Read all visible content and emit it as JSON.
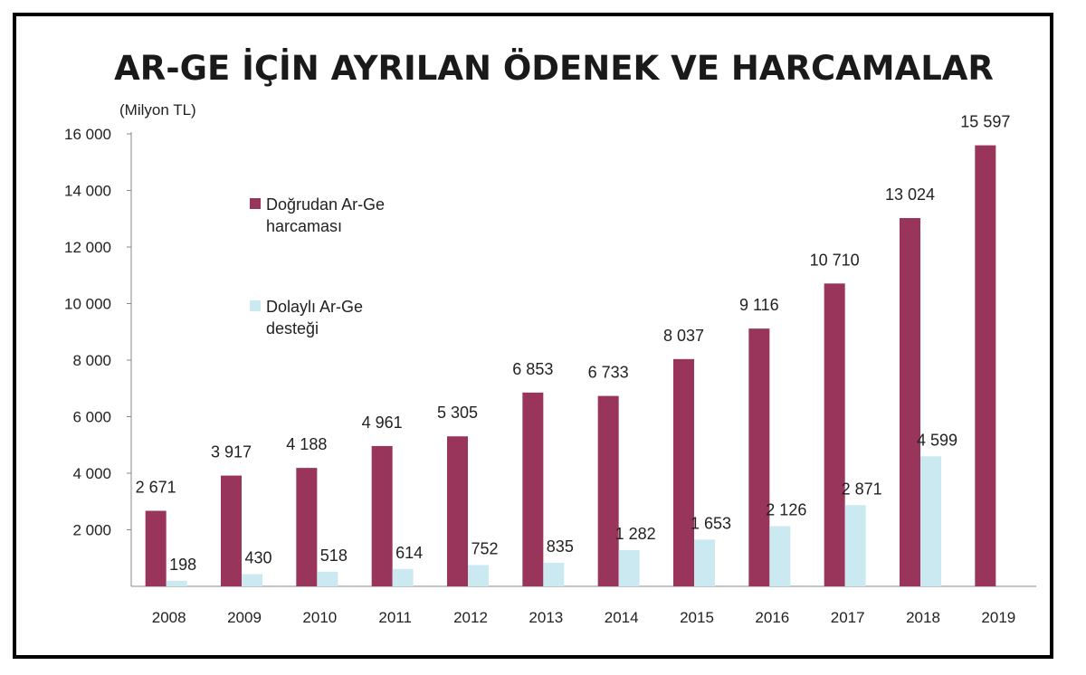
{
  "chart_data": {
    "type": "bar",
    "title": "AR-GE İÇİN AYRILAN ÖDENEK VE HARCAMALAR",
    "unit_label": "(Milyon TL)",
    "categories": [
      "2008",
      "2009",
      "2010",
      "2011",
      "2012",
      "2013",
      "2014",
      "2015",
      "2016",
      "2017",
      "2018",
      "2019"
    ],
    "series": [
      {
        "name": "Doğrudan Ar-Ge harcaması",
        "legend_lines": [
          "Doğrudan Ar-Ge",
          "harcaması"
        ],
        "color": "#99355b",
        "values": [
          2671,
          3917,
          4188,
          4961,
          5305,
          6853,
          6733,
          8037,
          9116,
          10710,
          13024,
          15597
        ],
        "labels": [
          "2 671",
          "3 917",
          "4 188",
          "4 961",
          "5 305",
          "6 853",
          "6 733",
          "8 037",
          "9 116",
          "10 710",
          "13 024",
          "15 597"
        ]
      },
      {
        "name": "Dolaylı Ar-Ge desteği",
        "legend_lines": [
          "Dolaylı Ar-Ge",
          "desteği"
        ],
        "color": "#cbe9f0",
        "values": [
          198,
          430,
          518,
          614,
          752,
          835,
          1282,
          1653,
          2126,
          2871,
          4599,
          null
        ],
        "labels": [
          "198",
          "430",
          "518",
          "614",
          "752",
          "835",
          "1 282",
          "1 653",
          "2 126",
          "2 871",
          "4 599",
          ""
        ]
      }
    ],
    "y_ticks": [
      2000,
      4000,
      6000,
      8000,
      10000,
      12000,
      14000,
      16000
    ],
    "y_tick_labels": [
      "2 000",
      "4 000",
      "6 000",
      "8 000",
      "10 000",
      "12 000",
      "14 000",
      "16 000"
    ],
    "ylim": [
      0,
      16000
    ],
    "grid": false,
    "legend_position": "upper-left inside plot"
  }
}
